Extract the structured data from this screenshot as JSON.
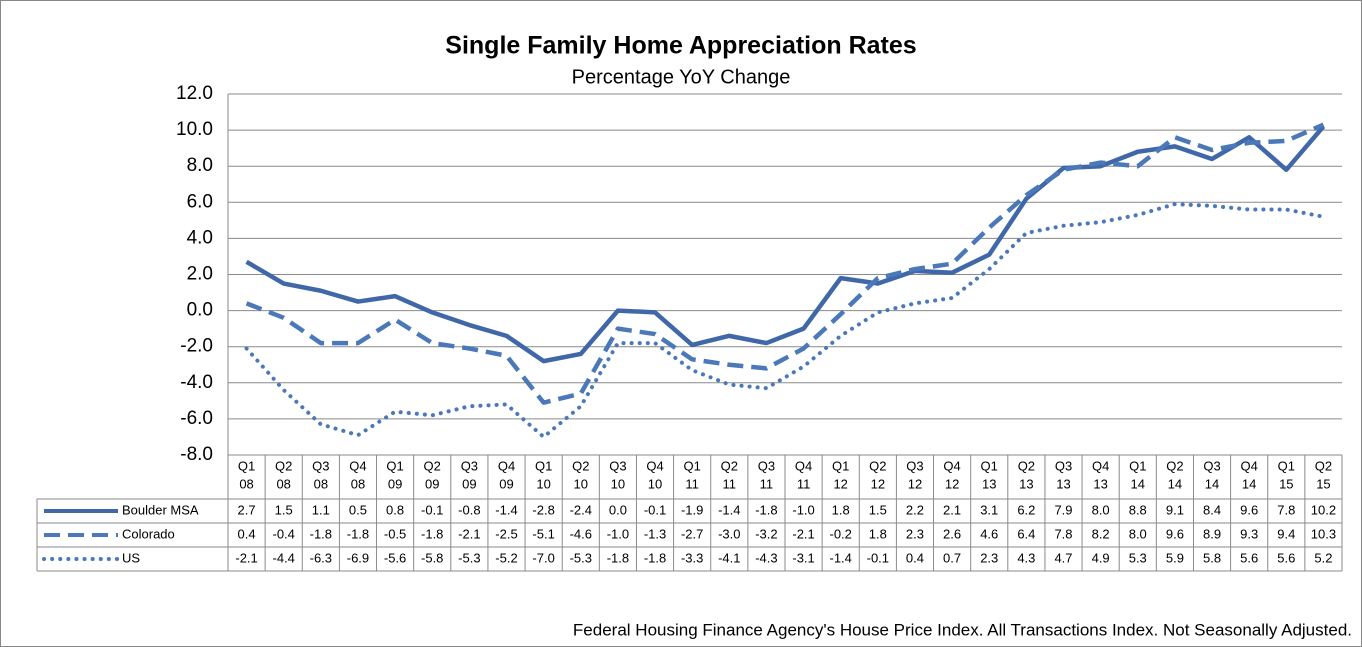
{
  "chart_data": {
    "type": "line",
    "title": "Single Family Home Appreciation Rates",
    "subtitle": "Percentage YoY Change",
    "footnote": "Federal Housing Finance Agency's House Price Index. All Transactions Index. Not Seasonally Adjusted.",
    "categories": [
      [
        "Q1",
        "08"
      ],
      [
        "Q2",
        "08"
      ],
      [
        "Q3",
        "08"
      ],
      [
        "Q4",
        "08"
      ],
      [
        "Q1",
        "09"
      ],
      [
        "Q2",
        "09"
      ],
      [
        "Q3",
        "09"
      ],
      [
        "Q4",
        "09"
      ],
      [
        "Q1",
        "10"
      ],
      [
        "Q2",
        "10"
      ],
      [
        "Q3",
        "10"
      ],
      [
        "Q4",
        "10"
      ],
      [
        "Q1",
        "11"
      ],
      [
        "Q2",
        "11"
      ],
      [
        "Q3",
        "11"
      ],
      [
        "Q4",
        "11"
      ],
      [
        "Q1",
        "12"
      ],
      [
        "Q2",
        "12"
      ],
      [
        "Q3",
        "12"
      ],
      [
        "Q4",
        "12"
      ],
      [
        "Q1",
        "13"
      ],
      [
        "Q2",
        "13"
      ],
      [
        "Q3",
        "13"
      ],
      [
        "Q4",
        "13"
      ],
      [
        "Q1",
        "14"
      ],
      [
        "Q2",
        "14"
      ],
      [
        "Q3",
        "14"
      ],
      [
        "Q4",
        "14"
      ],
      [
        "Q1",
        "15"
      ],
      [
        "Q2",
        "15"
      ]
    ],
    "series": [
      {
        "name": "Boulder MSA",
        "color": "#4068a8",
        "dash": "solid",
        "values": [
          2.7,
          1.5,
          1.1,
          0.5,
          0.8,
          -0.1,
          -0.8,
          -1.4,
          -2.8,
          -2.4,
          0.0,
          -0.1,
          -1.9,
          -1.4,
          -1.8,
          -1.0,
          1.8,
          1.5,
          2.2,
          2.1,
          3.1,
          6.2,
          7.9,
          8.0,
          8.8,
          9.1,
          8.4,
          9.6,
          7.8,
          10.2
        ],
        "value_labels": [
          "2.7",
          "1.5",
          "1.1",
          "0.5",
          "0.8",
          "-0.1",
          "-0.8",
          "-1.4",
          "-2.8",
          "-2.4",
          "0.0",
          "-0.1",
          "-1.9",
          "-1.4",
          "-1.8",
          "-1.0",
          "1.8",
          "1.5",
          "2.2",
          "2.1",
          "3.1",
          "6.2",
          "7.9",
          "8.0",
          "8.8",
          "9.1",
          "8.4",
          "9.6",
          "7.8",
          "10.2"
        ]
      },
      {
        "name": "Colorado",
        "color": "#4a78b8",
        "dash": "dashed",
        "values": [
          0.4,
          -0.4,
          -1.8,
          -1.8,
          -0.5,
          -1.8,
          -2.1,
          -2.5,
          -5.1,
          -4.6,
          -1.0,
          -1.3,
          -2.7,
          -3.0,
          -3.2,
          -2.1,
          -0.2,
          1.8,
          2.3,
          2.6,
          4.6,
          6.4,
          7.8,
          8.2,
          8.0,
          9.6,
          8.9,
          9.3,
          9.4,
          10.3
        ],
        "value_labels": [
          "0.4",
          "-0.4",
          "-1.8",
          "-1.8",
          "-0.5",
          "-1.8",
          "-2.1",
          "-2.5",
          "-5.1",
          "-4.6",
          "-1.0",
          "-1.3",
          "-2.7",
          "-3.0",
          "-3.2",
          "-2.1",
          "-0.2",
          "1.8",
          "2.3",
          "2.6",
          "4.6",
          "6.4",
          "7.8",
          "8.2",
          "8.0",
          "9.6",
          "8.9",
          "9.3",
          "9.4",
          "10.3"
        ]
      },
      {
        "name": "US",
        "color": "#4a78b8",
        "dash": "dotted",
        "values": [
          -2.1,
          -4.4,
          -6.3,
          -6.9,
          -5.6,
          -5.8,
          -5.3,
          -5.2,
          -7.0,
          -5.3,
          -1.8,
          -1.8,
          -3.3,
          -4.1,
          -4.3,
          -3.1,
          -1.4,
          -0.1,
          0.4,
          0.7,
          2.3,
          4.3,
          4.7,
          4.9,
          5.3,
          5.9,
          5.8,
          5.6,
          5.6,
          5.2
        ],
        "value_labels": [
          "-2.1",
          "-4.4",
          "-6.3",
          "-6.9",
          "-5.6",
          "-5.8",
          "-5.3",
          "-5.2",
          "-7.0",
          "-5.3",
          "-1.8",
          "-1.8",
          "-3.3",
          "-4.1",
          "-4.3",
          "-3.1",
          "-1.4",
          "-0.1",
          "0.4",
          "0.7",
          "2.3",
          "4.3",
          "4.7",
          "4.9",
          "5.3",
          "5.9",
          "5.8",
          "5.6",
          "5.6",
          "5.2"
        ]
      }
    ],
    "ylim": [
      -8,
      12
    ],
    "yticks": [
      {
        "value": -8,
        "label": "-8.0"
      },
      {
        "value": -6,
        "label": "-6.0"
      },
      {
        "value": -4,
        "label": "-4.0"
      },
      {
        "value": -2,
        "label": "-2.0"
      },
      {
        "value": 0,
        "label": "0.0"
      },
      {
        "value": 2,
        "label": "2.0"
      },
      {
        "value": 4,
        "label": "4.0"
      },
      {
        "value": 6,
        "label": "6.0"
      },
      {
        "value": 8,
        "label": "8.0"
      },
      {
        "value": 10,
        "label": "10.0"
      },
      {
        "value": 12,
        "label": "12.0"
      }
    ],
    "grid": true
  }
}
